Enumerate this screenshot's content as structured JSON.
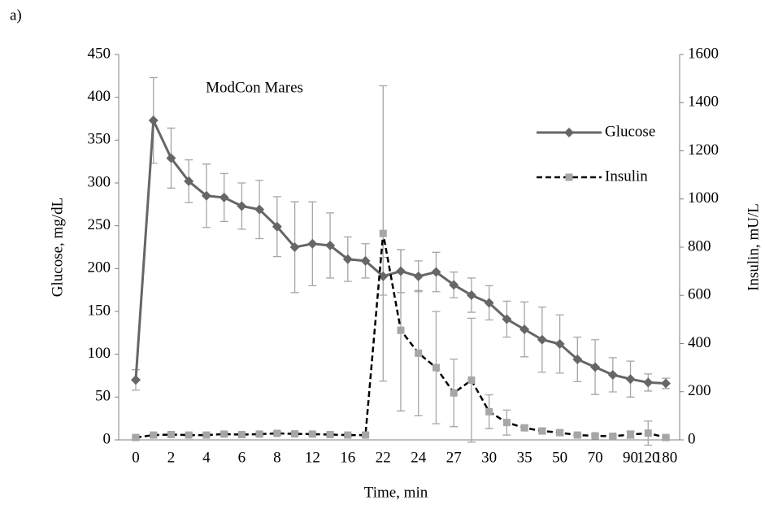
{
  "chart_data": {
    "type": "line",
    "panel_label": "a)",
    "annotation": "ModCon Mares",
    "x_label": "Time, min",
    "y_label": "Glucose, mg/dL",
    "y2_label": "Insulin, mU/L",
    "categories": [
      "0",
      null,
      "2",
      null,
      "4",
      null,
      "6",
      null,
      "8",
      null,
      "12",
      null,
      "16",
      null,
      "22",
      null,
      "24",
      null,
      "27",
      null,
      "30",
      null,
      "35",
      null,
      "50",
      null,
      "70",
      null,
      "90",
      "120",
      "180"
    ],
    "ylim": [
      0,
      450
    ],
    "yticks": [
      0,
      50,
      100,
      150,
      200,
      250,
      300,
      350,
      400,
      450
    ],
    "y2lim": [
      0,
      1600
    ],
    "y2ticks": [
      0,
      200,
      400,
      600,
      800,
      1000,
      1200,
      1400,
      1600
    ],
    "grid": false,
    "legend_position": "upper right",
    "error_color": "#a6a6a6",
    "series": [
      {
        "name": "Glucose",
        "color": "#666666",
        "marker": "diamond",
        "dash": false,
        "values": [
          70,
          373,
          329,
          302,
          285,
          283,
          273,
          269,
          249,
          225,
          229,
          227,
          211,
          209,
          191,
          197,
          191,
          196,
          181,
          169,
          160,
          141,
          129,
          117,
          112,
          94,
          85,
          76,
          71,
          67,
          66
        ],
        "errors": [
          12,
          50,
          35,
          25,
          37,
          28,
          27,
          34,
          35,
          53,
          49,
          38,
          26,
          20,
          22,
          25,
          18,
          23,
          15,
          20,
          20,
          21,
          32,
          38,
          34,
          26,
          32,
          20,
          21,
          10,
          6
        ]
      },
      {
        "name": "Insulin",
        "color": "#000000",
        "marker_color": "#a6a6a6",
        "marker": "square",
        "dash": true,
        "axis": "y2",
        "values": [
          10,
          20,
          22,
          20,
          20,
          24,
          22,
          24,
          27,
          25,
          24,
          22,
          20,
          20,
          857,
          455,
          360,
          300,
          195,
          248,
          117,
          72,
          50,
          37,
          30,
          20,
          17,
          15,
          22,
          28,
          10
        ],
        "errors": [
          5,
          6,
          6,
          6,
          6,
          6,
          6,
          6,
          8,
          6,
          6,
          6,
          6,
          6,
          613,
          335,
          260,
          233,
          140,
          257,
          70,
          52,
          10,
          12,
          10,
          6,
          6,
          5,
          15,
          50,
          5
        ]
      }
    ]
  }
}
